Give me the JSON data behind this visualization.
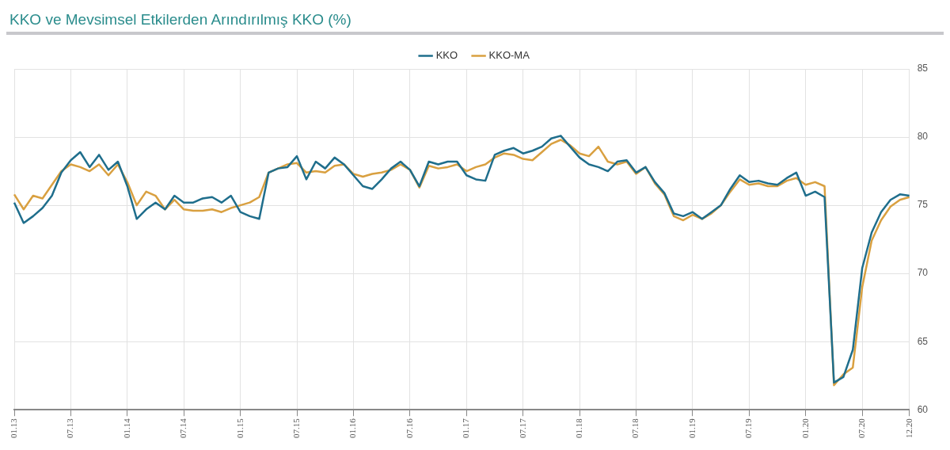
{
  "chart_data": {
    "type": "line",
    "title": "KKO ve Mevsimsel Etkilerden Arındırılmış KKO (%)",
    "categories": [
      "01.13",
      null,
      null,
      null,
      null,
      null,
      "07.13",
      null,
      null,
      null,
      null,
      null,
      "01.14",
      null,
      null,
      null,
      null,
      null,
      "07.14",
      null,
      null,
      null,
      null,
      null,
      "01.15",
      null,
      null,
      null,
      null,
      null,
      "07.15",
      null,
      null,
      null,
      null,
      null,
      "01.16",
      null,
      null,
      null,
      null,
      null,
      "07.16",
      null,
      null,
      null,
      null,
      null,
      "01.17",
      null,
      null,
      null,
      null,
      null,
      "07.17",
      null,
      null,
      null,
      null,
      null,
      "01.18",
      null,
      null,
      null,
      null,
      null,
      "07.18",
      null,
      null,
      null,
      null,
      null,
      "01.19",
      null,
      null,
      null,
      null,
      null,
      "07.19",
      null,
      null,
      null,
      null,
      null,
      "01.20",
      null,
      null,
      null,
      null,
      null,
      "07.20",
      null,
      null,
      null,
      null,
      "12.20"
    ],
    "series": [
      {
        "name": "KKO",
        "color": "#1f6e8c",
        "values": [
          75.2,
          73.7,
          74.2,
          74.8,
          75.7,
          77.4,
          78.3,
          78.9,
          77.8,
          78.7,
          77.6,
          78.2,
          76.4,
          74.0,
          74.7,
          75.2,
          74.7,
          75.7,
          75.2,
          75.2,
          75.5,
          75.6,
          75.2,
          75.7,
          74.5,
          74.2,
          74.0,
          77.4,
          77.7,
          77.8,
          78.6,
          76.9,
          78.2,
          77.7,
          78.5,
          78.0,
          77.2,
          76.4,
          76.2,
          76.9,
          77.7,
          78.2,
          77.6,
          76.4,
          78.2,
          78.0,
          78.2,
          78.2,
          77.2,
          76.9,
          76.8,
          78.7,
          79.0,
          79.2,
          78.8,
          79.0,
          79.3,
          79.9,
          80.1,
          79.3,
          78.5,
          78.0,
          77.8,
          77.5,
          78.2,
          78.3,
          77.4,
          77.8,
          76.7,
          75.9,
          74.4,
          74.2,
          74.5,
          74.0,
          74.5,
          75.0,
          76.2,
          77.2,
          76.7,
          76.8,
          76.6,
          76.5,
          77.0,
          77.4,
          75.7,
          76.0,
          75.6,
          62.0,
          62.4,
          64.4,
          70.4,
          73.0,
          74.5,
          75.4,
          75.8,
          75.7
        ]
      },
      {
        "name": "KKO-MA",
        "color": "#d9a040",
        "values": [
          75.8,
          74.7,
          75.7,
          75.5,
          76.5,
          77.5,
          78.0,
          77.8,
          77.5,
          78.0,
          77.2,
          78.0,
          76.7,
          75.0,
          76.0,
          75.7,
          74.7,
          75.4,
          74.7,
          74.6,
          74.6,
          74.7,
          74.5,
          74.8,
          75.0,
          75.2,
          75.6,
          77.4,
          77.7,
          78.0,
          78.1,
          77.4,
          77.5,
          77.4,
          77.9,
          78.0,
          77.3,
          77.1,
          77.3,
          77.4,
          77.6,
          78.0,
          77.6,
          76.3,
          77.9,
          77.7,
          77.8,
          78.0,
          77.5,
          77.8,
          78.0,
          78.5,
          78.8,
          78.7,
          78.4,
          78.3,
          78.9,
          79.5,
          79.8,
          79.4,
          78.8,
          78.6,
          79.3,
          78.2,
          78.0,
          78.2,
          77.3,
          77.8,
          76.6,
          75.8,
          74.2,
          73.9,
          74.3,
          74.0,
          74.4,
          75.0,
          76.0,
          76.9,
          76.5,
          76.6,
          76.4,
          76.4,
          76.8,
          77.0,
          76.5,
          76.7,
          76.4,
          61.8,
          62.6,
          63.1,
          69.0,
          72.4,
          73.9,
          74.9,
          75.4,
          75.6
        ]
      }
    ],
    "ylim": [
      60,
      85
    ],
    "yticks": [
      60,
      65,
      70,
      75,
      80,
      85
    ],
    "grid": true,
    "legend": "top",
    "marker": "none",
    "line_style": "solid"
  }
}
